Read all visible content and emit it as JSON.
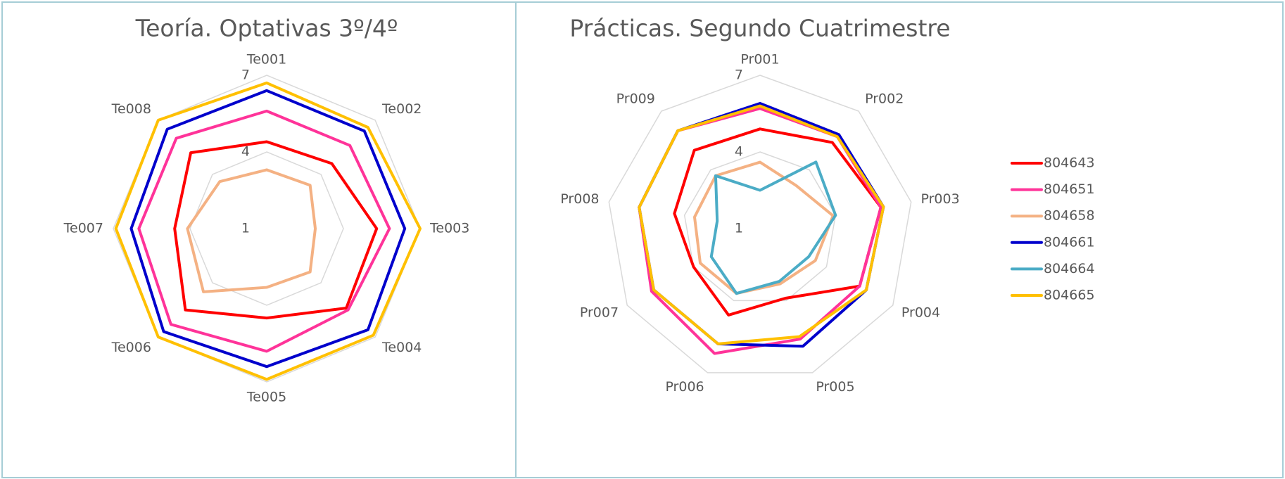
{
  "chart_data": [
    {
      "type": "radar",
      "title": "Teoría. Optativas 3º/4º",
      "categories": [
        "Te001",
        "Te002",
        "Te003",
        "Te004",
        "Te005",
        "Te006",
        "Te007",
        "Te008"
      ],
      "rlim": [
        1,
        7
      ],
      "rticks": [
        1,
        4,
        7
      ],
      "grid": true,
      "series": [
        {
          "name": "804643",
          "color": "#ff0000",
          "values": [
            4.4,
            4.6,
            5.3,
            5.4,
            4.5,
            5.5,
            4.6,
            5.2
          ]
        },
        {
          "name": "804651",
          "color": "#ff3399",
          "values": [
            5.6,
            5.6,
            5.8,
            5.5,
            5.8,
            6.3,
            6.0,
            6.0
          ]
        },
        {
          "name": "804658",
          "color": "#f4b183",
          "values": [
            3.3,
            3.4,
            2.9,
            3.4,
            3.3,
            4.5,
            4.1,
            3.6
          ]
        },
        {
          "name": "804661",
          "color": "#0000cc",
          "values": [
            6.4,
            6.4,
            6.4,
            6.6,
            6.4,
            6.7,
            6.3,
            6.5
          ]
        },
        {
          "name": "804665",
          "color": "#ffc000",
          "values": [
            6.7,
            6.6,
            7.0,
            6.9,
            6.9,
            7.0,
            6.9,
            7.0
          ]
        }
      ]
    },
    {
      "type": "radar",
      "title": "Prácticas. Segundo Cuatrimestre",
      "categories": [
        "Pr001",
        "Pr002",
        "Pr003",
        "Pr004",
        "Pr005",
        "Pr006",
        "Pr007",
        "Pr008",
        "Pr009"
      ],
      "rlim": [
        1,
        7
      ],
      "rticks": [
        1,
        4,
        7
      ],
      "grid": true,
      "legend": "right",
      "series": [
        {
          "name": "804643",
          "color": "#ff0000",
          "values": [
            4.9,
            5.4,
            5.8,
            5.5,
            3.9,
            4.6,
            4.0,
            4.4,
            5.0
          ]
        },
        {
          "name": "804651",
          "color": "#ff3399",
          "values": [
            5.7,
            5.7,
            5.8,
            5.5,
            5.6,
            6.2,
            5.9,
            5.8,
            6.0
          ]
        },
        {
          "name": "804658",
          "color": "#f4b183",
          "values": [
            3.6,
            3.2,
            3.9,
            3.5,
            3.3,
            3.7,
            3.7,
            3.6,
            3.7
          ]
        },
        {
          "name": "804661",
          "color": "#0000cc",
          "values": [
            5.9,
            5.8,
            5.9,
            5.8,
            5.9,
            5.8,
            5.8,
            5.8,
            6.0
          ]
        },
        {
          "name": "804664",
          "color": "#4bacc6",
          "values": [
            2.5,
            4.4,
            4.0,
            3.2,
            3.2,
            3.7,
            3.2,
            2.7,
            3.7
          ]
        },
        {
          "name": "804665",
          "color": "#ffc000",
          "values": [
            5.8,
            5.7,
            5.9,
            5.8,
            5.5,
            5.8,
            5.8,
            5.8,
            6.0
          ]
        }
      ]
    }
  ]
}
